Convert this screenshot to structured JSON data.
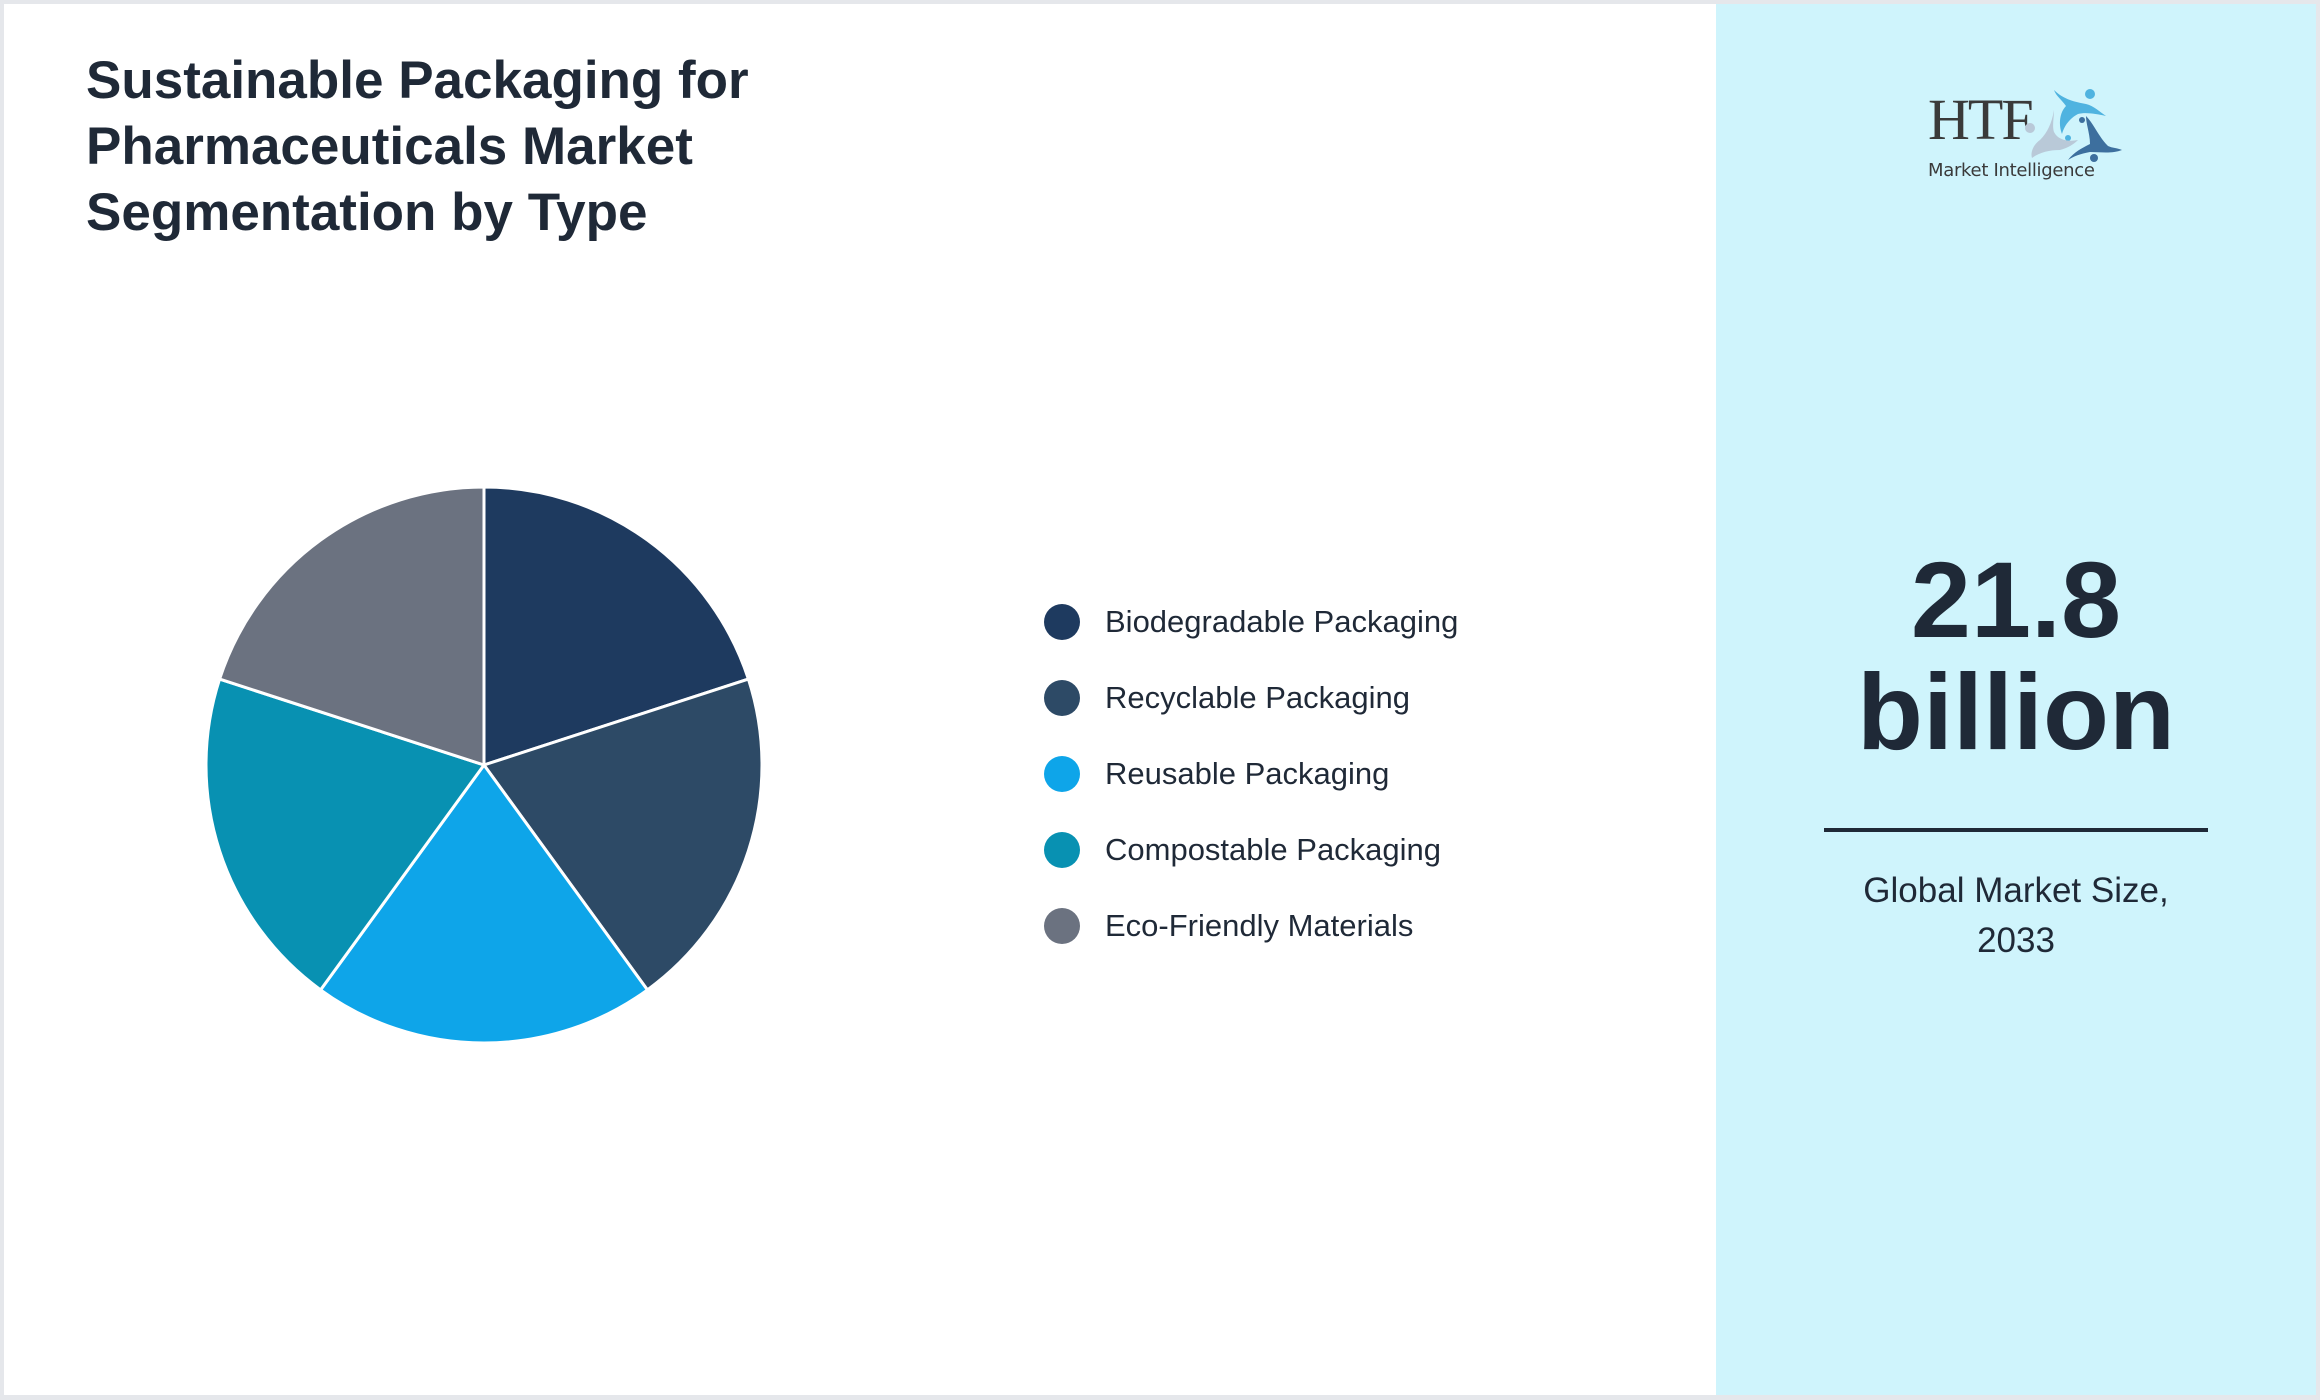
{
  "title": "Sustainable Packaging for Pharmaceuticals Market Segmentation by Type",
  "chart_data": {
    "type": "pie",
    "title": "Sustainable Packaging for Pharmaceuticals Market Segmentation by Type",
    "categories": [
      "Biodegradable Packaging",
      "Recyclable Packaging",
      "Reusable Packaging",
      "Compostable Packaging",
      "Eco-Friendly Materials"
    ],
    "values": [
      20,
      20,
      20,
      20,
      20
    ],
    "colors": [
      "#1e3a5f",
      "#2d4a66",
      "#0ea5e9",
      "#0891b2",
      "#6b7280"
    ],
    "start_angle_deg": 0,
    "direction": "clockwise",
    "legend_position": "right",
    "data_labels": false
  },
  "legend": {
    "items": [
      {
        "label": "Biodegradable Packaging",
        "color": "#1e3a5f"
      },
      {
        "label": "Recyclable Packaging",
        "color": "#2d4a66"
      },
      {
        "label": "Reusable Packaging",
        "color": "#0ea5e9"
      },
      {
        "label": "Compostable Packaging",
        "color": "#0891b2"
      },
      {
        "label": "Eco-Friendly Materials",
        "color": "#6b7280"
      }
    ]
  },
  "side_panel": {
    "logo": {
      "brand": "HTF",
      "tagline": "Market Intelligence",
      "icon": "people-circle-logo-icon"
    },
    "value_number": "21.8",
    "value_unit": "billion",
    "caption": "Global Market Size, 2033",
    "background": "#cff4fc"
  }
}
